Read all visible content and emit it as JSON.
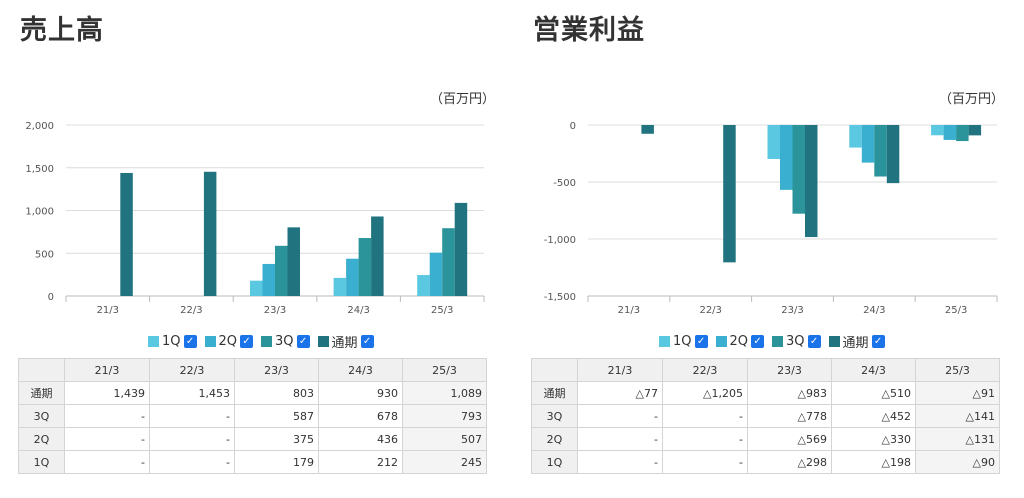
{
  "sales": {
    "title": "売上高",
    "unit": "（百万円）",
    "legend": [
      {
        "label": "1Q",
        "color": "#5ac8e0"
      },
      {
        "label": "2Q",
        "color": "#3aafcf"
      },
      {
        "label": "3Q",
        "color": "#2b949b"
      },
      {
        "label": "通期",
        "color": "#21747f"
      }
    ],
    "table": {
      "header": [
        "",
        "21/3",
        "22/3",
        "23/3",
        "24/3",
        "25/3"
      ],
      "rows": [
        {
          "label": "通期",
          "values": [
            "1,439",
            "1,453",
            "803",
            "930",
            "1,089"
          ]
        },
        {
          "label": "3Q",
          "values": [
            "-",
            "-",
            "587",
            "678",
            "793"
          ]
        },
        {
          "label": "2Q",
          "values": [
            "-",
            "-",
            "375",
            "436",
            "507"
          ]
        },
        {
          "label": "1Q",
          "values": [
            "-",
            "-",
            "179",
            "212",
            "245"
          ]
        }
      ]
    }
  },
  "op_income": {
    "title": "営業利益",
    "unit": "（百万円）",
    "legend": [
      {
        "label": "1Q",
        "color": "#5ac8e0"
      },
      {
        "label": "2Q",
        "color": "#3aafcf"
      },
      {
        "label": "3Q",
        "color": "#2b949b"
      },
      {
        "label": "通期",
        "color": "#21747f"
      }
    ],
    "table": {
      "header": [
        "",
        "21/3",
        "22/3",
        "23/3",
        "24/3",
        "25/3"
      ],
      "rows": [
        {
          "label": "通期",
          "values": [
            "△77",
            "△1,205",
            "△983",
            "△510",
            "△91"
          ]
        },
        {
          "label": "3Q",
          "values": [
            "-",
            "-",
            "△778",
            "△452",
            "△141"
          ]
        },
        {
          "label": "2Q",
          "values": [
            "-",
            "-",
            "△569",
            "△330",
            "△131"
          ]
        },
        {
          "label": "1Q",
          "values": [
            "-",
            "-",
            "△298",
            "△198",
            "△90"
          ]
        }
      ]
    }
  },
  "legend_checkbox_mark": "✓",
  "chart_data": [
    {
      "type": "bar",
      "title": "売上高",
      "ylabel": "（百万円）",
      "categories": [
        "21/3",
        "22/3",
        "23/3",
        "24/3",
        "25/3"
      ],
      "ylim": [
        0,
        2000
      ],
      "yticks": [
        0,
        500,
        1000,
        1500,
        2000
      ],
      "ytick_labels": [
        "0",
        "500",
        "1,000",
        "1,500",
        "2,000"
      ],
      "grid": true,
      "series": [
        {
          "name": "1Q",
          "color": "#5ac8e0",
          "values": [
            null,
            null,
            179,
            212,
            245
          ]
        },
        {
          "name": "2Q",
          "color": "#3aafcf",
          "values": [
            null,
            null,
            375,
            436,
            507
          ]
        },
        {
          "name": "3Q",
          "color": "#2b949b",
          "values": [
            null,
            null,
            587,
            678,
            793
          ]
        },
        {
          "name": "通期",
          "color": "#21747f",
          "values": [
            1439,
            1453,
            803,
            930,
            1089
          ]
        }
      ]
    },
    {
      "type": "bar",
      "title": "営業利益",
      "ylabel": "（百万円）",
      "categories": [
        "21/3",
        "22/3",
        "23/3",
        "24/3",
        "25/3"
      ],
      "ylim": [
        -1500,
        0
      ],
      "yticks": [
        0,
        -500,
        -1000,
        -1500
      ],
      "ytick_labels": [
        "0",
        "-500",
        "-1,000",
        "-1,500"
      ],
      "grid": true,
      "series": [
        {
          "name": "1Q",
          "color": "#5ac8e0",
          "values": [
            null,
            null,
            -298,
            -198,
            -90
          ]
        },
        {
          "name": "2Q",
          "color": "#3aafcf",
          "values": [
            null,
            null,
            -569,
            -330,
            -131
          ]
        },
        {
          "name": "3Q",
          "color": "#2b949b",
          "values": [
            null,
            null,
            -778,
            -452,
            -141
          ]
        },
        {
          "name": "通期",
          "color": "#21747f",
          "values": [
            -77,
            -1205,
            -983,
            -510,
            -91
          ]
        }
      ]
    }
  ]
}
